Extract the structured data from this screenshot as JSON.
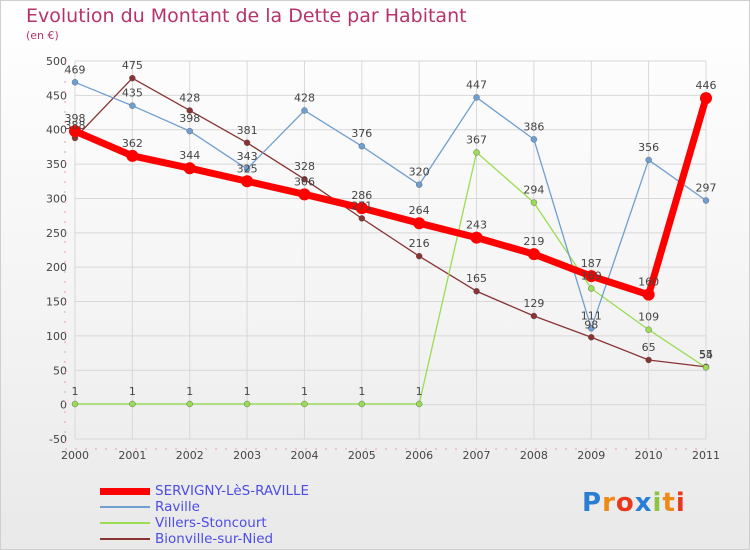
{
  "chart_data": {
    "type": "line",
    "title": "Evolution du Montant de la Dette par Habitant",
    "subtitle": "(en €)",
    "x": [
      "2000",
      "2001",
      "2002",
      "2003",
      "2004",
      "2005",
      "2006",
      "2007",
      "2008",
      "2009",
      "2010",
      "2011"
    ],
    "ylim": [
      -50,
      500
    ],
    "yticks": [
      -50,
      0,
      50,
      100,
      150,
      200,
      250,
      300,
      350,
      400,
      450,
      500
    ],
    "grid": true,
    "legend_position": "bottom-left",
    "series": [
      {
        "name": "SERVIGNY-LèS-RAVILLE",
        "color": "#ff0000",
        "values": [
          398,
          362,
          344,
          325,
          306,
          286,
          264,
          243,
          219,
          187,
          160,
          446
        ]
      },
      {
        "name": "Raville",
        "color": "#6f9fd0",
        "values": [
          469,
          435,
          398,
          343,
          428,
          376,
          320,
          447,
          386,
          111,
          356,
          297
        ]
      },
      {
        "name": "Villers-Stoncourt",
        "color": "#99dd55",
        "values": [
          1,
          1,
          1,
          1,
          1,
          1,
          1,
          367,
          294,
          169,
          109,
          54
        ]
      },
      {
        "name": "Bionville-sur-Nied",
        "color": "#8a3333",
        "values": [
          388,
          475,
          428,
          381,
          328,
          271,
          216,
          165,
          129,
          98,
          65,
          55
        ]
      }
    ]
  },
  "logo": {
    "letters": [
      "P",
      "r",
      "o",
      "x",
      "i",
      "t",
      "i"
    ],
    "colors": [
      "#2a7fd4",
      "#f08a16",
      "#e8391f",
      "#2a7fd4",
      "#8bc53f",
      "#f08a16",
      "#e8391f"
    ]
  }
}
